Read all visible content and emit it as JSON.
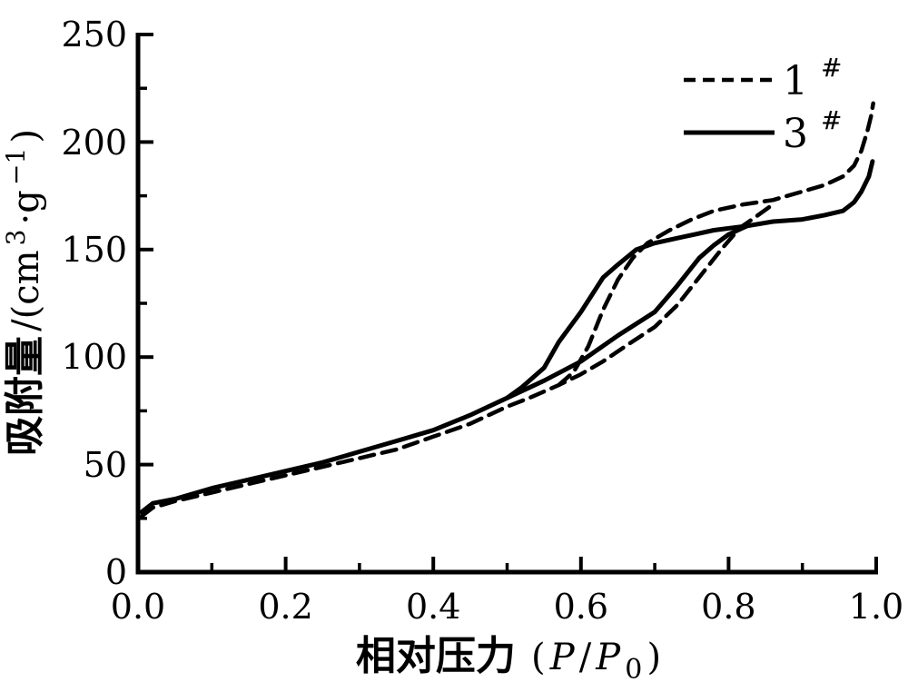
{
  "figure": {
    "background": "#ffffff",
    "ink": "#000000"
  },
  "chart_data": {
    "type": "line",
    "description": "Nitrogen adsorption-desorption isotherms with hysteresis loops for samples 1# (dashed) and 3# (solid)",
    "xlabel": {
      "cn": "相对压力",
      "paren_open": "(",
      "p1": "P",
      "slash": "/",
      "p2": "P",
      "sub": "0",
      "paren_close": ")"
    },
    "ylabel": {
      "cn": "吸附量",
      "unit_prefix": "/(cm",
      "sup1": "3",
      "unit_mid": "·g",
      "sup2": "−1",
      "unit_suffix": ")"
    },
    "xlim": [
      0,
      1.0
    ],
    "ylim": [
      0,
      250
    ],
    "grid": false,
    "x_major_ticks": [
      0,
      0.2,
      0.4,
      0.6,
      0.8,
      1.0
    ],
    "x_tick_labels": [
      "0.0",
      "0.2",
      "0.4",
      "0.6",
      "0.8",
      "1.0"
    ],
    "x_minor_ticks": [
      0.1,
      0.3,
      0.5,
      0.7,
      0.9
    ],
    "y_major_ticks": [
      0,
      50,
      100,
      150,
      200,
      250
    ],
    "y_tick_labels": [
      "0",
      "50",
      "100",
      "150",
      "200",
      "250"
    ],
    "y_minor_ticks": [
      25,
      75,
      125,
      175,
      225
    ],
    "legend": {
      "position": "top-right",
      "entries": [
        {
          "label": "1",
          "sup": "#",
          "style": "dashed"
        },
        {
          "label": "3",
          "sup": "#",
          "style": "solid"
        }
      ]
    },
    "series": [
      {
        "name": "1#",
        "style": "dashed",
        "color": "#000000",
        "branches": {
          "adsorption": [
            [
              0.005,
              26
            ],
            [
              0.02,
              30
            ],
            [
              0.05,
              33
            ],
            [
              0.1,
              37
            ],
            [
              0.15,
              41
            ],
            [
              0.2,
              45
            ],
            [
              0.25,
              49
            ],
            [
              0.3,
              53
            ],
            [
              0.35,
              57
            ],
            [
              0.4,
              63
            ],
            [
              0.45,
              69
            ],
            [
              0.5,
              77
            ],
            [
              0.53,
              81
            ],
            [
              0.57,
              87
            ],
            [
              0.6,
              92
            ],
            [
              0.63,
              98
            ],
            [
              0.66,
              105
            ],
            [
              0.7,
              114
            ],
            [
              0.73,
              124
            ],
            [
              0.76,
              137
            ],
            [
              0.79,
              150
            ],
            [
              0.815,
              160
            ],
            [
              0.84,
              166
            ],
            [
              0.86,
              171
            ]
          ],
          "desorption": [
            [
              0.57,
              87
            ],
            [
              0.59,
              93
            ],
            [
              0.61,
              105
            ],
            [
              0.63,
              122
            ],
            [
              0.65,
              136
            ],
            [
              0.67,
              146
            ],
            [
              0.69,
              153
            ],
            [
              0.72,
              159
            ],
            [
              0.75,
              164
            ],
            [
              0.78,
              168
            ],
            [
              0.82,
              171
            ],
            [
              0.86,
              173
            ],
            [
              0.9,
              177
            ],
            [
              0.93,
              180
            ],
            [
              0.955,
              184
            ],
            [
              0.97,
              189
            ],
            [
              0.98,
              196
            ],
            [
              0.988,
              205
            ],
            [
              0.993,
              212
            ],
            [
              0.996,
              218
            ]
          ]
        }
      },
      {
        "name": "3#",
        "style": "solid",
        "color": "#000000",
        "branches": {
          "adsorption": [
            [
              0.005,
              28
            ],
            [
              0.02,
              32
            ],
            [
              0.05,
              34
            ],
            [
              0.1,
              39
            ],
            [
              0.15,
              43
            ],
            [
              0.2,
              47
            ],
            [
              0.25,
              51
            ],
            [
              0.3,
              56
            ],
            [
              0.35,
              61
            ],
            [
              0.4,
              66
            ],
            [
              0.45,
              73
            ],
            [
              0.5,
              81
            ],
            [
              0.55,
              89
            ],
            [
              0.6,
              98
            ],
            [
              0.65,
              110
            ],
            [
              0.7,
              121
            ],
            [
              0.73,
              133
            ],
            [
              0.76,
              146
            ],
            [
              0.78,
              152
            ],
            [
              0.8,
              157
            ],
            [
              0.825,
              161
            ]
          ],
          "desorption": [
            [
              0.5,
              81
            ],
            [
              0.52,
              86
            ],
            [
              0.55,
              95
            ],
            [
              0.57,
              107
            ],
            [
              0.6,
              121
            ],
            [
              0.63,
              137
            ],
            [
              0.65,
              143
            ],
            [
              0.675,
              150
            ],
            [
              0.7,
              153
            ],
            [
              0.74,
              156
            ],
            [
              0.78,
              159
            ],
            [
              0.825,
              161
            ],
            [
              0.86,
              163
            ],
            [
              0.9,
              164
            ],
            [
              0.93,
              166
            ],
            [
              0.955,
              168
            ],
            [
              0.97,
              172
            ],
            [
              0.98,
              177
            ],
            [
              0.99,
              184
            ],
            [
              0.995,
              191
            ]
          ]
        }
      }
    ]
  }
}
